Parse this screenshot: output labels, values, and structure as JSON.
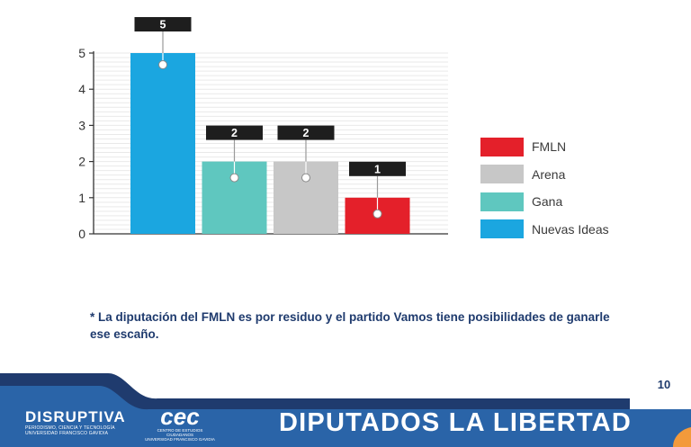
{
  "chart_data": {
    "type": "bar",
    "categories": [
      "Nuevas Ideas",
      "Gana",
      "Arena",
      "FMLN"
    ],
    "values": [
      5,
      2,
      2,
      1
    ],
    "data_labels": [
      "5",
      "2",
      "2",
      "1"
    ],
    "colors": [
      "#1ba6e0",
      "#5fc7bf",
      "#c7c7c7",
      "#e4202a"
    ],
    "ylim": [
      0,
      5
    ],
    "yticks": [
      "0",
      "1",
      "2",
      "3",
      "4",
      "5"
    ],
    "grid": true,
    "legend_position": "right",
    "title": "",
    "xlabel": "",
    "ylabel": ""
  },
  "legend": [
    {
      "label": "FMLN",
      "color": "#e4202a"
    },
    {
      "label": "Arena",
      "color": "#c7c7c7"
    },
    {
      "label": "Gana",
      "color": "#5fc7bf"
    },
    {
      "label": "Nuevas Ideas",
      "color": "#1ba6e0"
    }
  ],
  "footnote": "* La diputación del FMLN es por residuo y el partido Vamos tiene posibilidades de ganarle ese escaño.",
  "footer": {
    "title": "DIPUTADOS LA LIBERTAD",
    "page_number": "10",
    "brand_name": "DISRUPTIVA",
    "brand_sub_1": "PERIODISMO, CIENCIA Y TECNOLOGÍA",
    "brand_sub_2": "UNIVERSIDAD FRANCISCO GAVIDIA",
    "cec_logo": "cec",
    "cec_sub_1": "CENTRO DE ESTUDIOS CIUDADANOS",
    "cec_sub_2": "UNIVERSIDAD FRANCISCO GAVIDIA",
    "colors": {
      "navy": "#1f3b6e",
      "blue": "#2a64a8",
      "orange": "#f39a3b"
    }
  }
}
